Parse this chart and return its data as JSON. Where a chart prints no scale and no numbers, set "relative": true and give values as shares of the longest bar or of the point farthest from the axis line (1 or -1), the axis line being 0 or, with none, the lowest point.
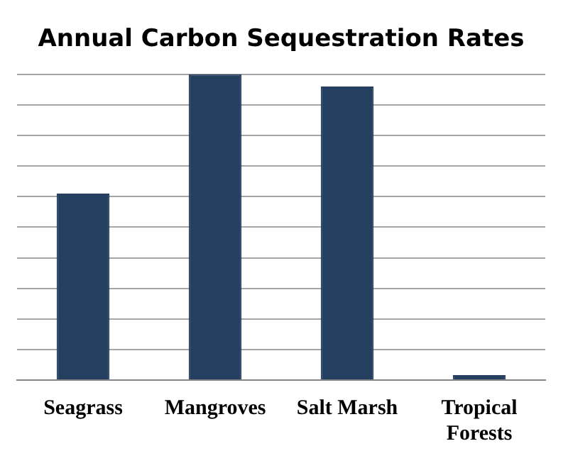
{
  "chart_data": {
    "type": "bar",
    "title": "Annual Carbon Sequestration Rates",
    "categories": [
      "Seagrass",
      "Mangroves",
      "Salt Marsh",
      "Tropical Forests"
    ],
    "values": [
      0.61,
      1,
      0.96,
      0.016
    ],
    "color": "#243f60",
    "relative": true,
    "grid": "y",
    "legend": false
  }
}
